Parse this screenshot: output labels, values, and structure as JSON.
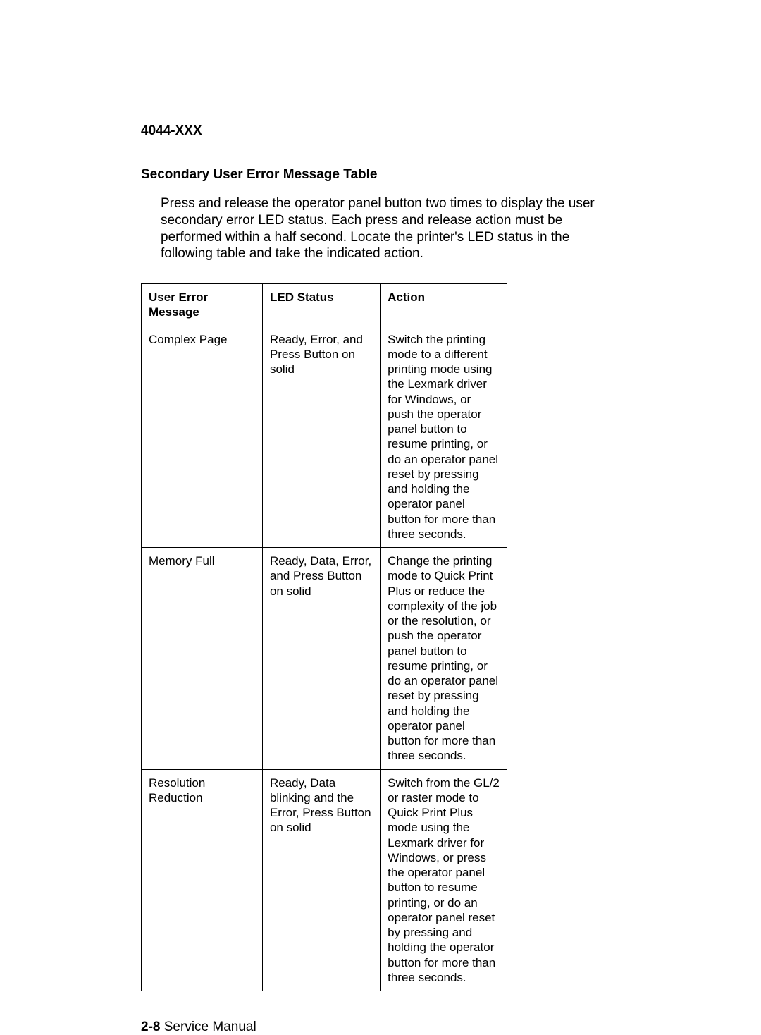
{
  "header": {
    "model_code": "4044-XXX",
    "section_title": "Secondary User Error Message Table"
  },
  "intro": "Press and release the operator panel button two times to display the user secondary error LED status. Each press and release action must be performed within a half second. Locate the printer's LED status in the following table and take the indicated action.",
  "table": {
    "columns": [
      "User Error Message",
      "LED Status",
      "Action"
    ],
    "rows": [
      {
        "message": "Complex Page",
        "led": "Ready, Error, and Press Button on solid",
        "action": "Switch the printing mode to a different printing mode using the Lexmark driver for Windows, or push the operator panel button to resume printing, or do an operator panel reset by pressing and holding the operator panel button for more than three seconds."
      },
      {
        "message": "Memory Full",
        "led": "Ready, Data, Error, and Press Button on solid",
        "action": "Change the printing mode to Quick Print Plus or reduce the complexity of the job or the resolution, or push the operator panel button to resume printing, or do an operator panel reset by pressing and holding the operator panel button for more than three seconds."
      },
      {
        "message": "Resolution Reduction",
        "led": "Ready, Data blinking and the Error, Press Button on solid",
        "action": "Switch from the GL/2 or raster mode to Quick Print Plus mode using the Lexmark driver for Windows, or press the operator panel button to resume printing, or do an operator panel reset by pressing and holding the operator button for more than three seconds."
      }
    ]
  },
  "footer": {
    "page_number": "2-8",
    "label": "Service Manual"
  }
}
